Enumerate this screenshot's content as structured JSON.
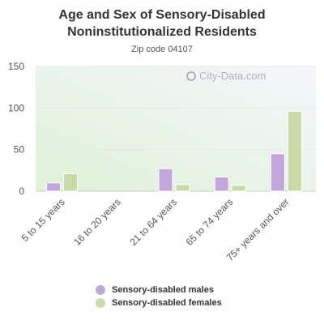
{
  "page": {
    "title_line1": "Age and Sex of Sensory-Disabled",
    "title_line2": "Noninstitutionalized Residents",
    "subtitle": "Zip code 04107",
    "watermark": "City-Data.com"
  },
  "chart_data": {
    "type": "bar",
    "title": "Age and Sex of Sensory-Disabled Noninstitutionalized Residents",
    "subtitle": "Zip code 04107",
    "categories": [
      "5 to 15 years",
      "16 to 20 years",
      "21 to 64 years",
      "65 to 74 years",
      "75+ years and over"
    ],
    "series": [
      {
        "name": "Sensory-disabled males",
        "color": "#c3a6dc",
        "values": [
          10,
          0,
          27,
          17,
          45
        ]
      },
      {
        "name": "Sensory-disabled females",
        "color": "#c8dba6",
        "values": [
          21,
          0,
          8,
          7,
          96
        ]
      }
    ],
    "ylim": [
      0,
      150
    ],
    "yticks": [
      0,
      50,
      100,
      150
    ],
    "grid": true,
    "legend": "bottom"
  }
}
